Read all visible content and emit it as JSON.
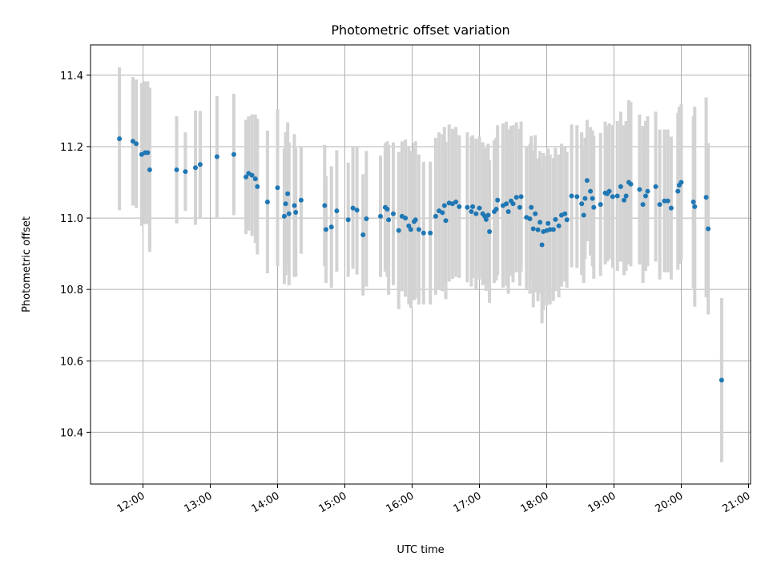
{
  "chart_data": {
    "type": "scatter",
    "title": "Photometric offset variation",
    "xlabel": "UTC time",
    "ylabel": "Photometric offset",
    "grid": true,
    "xlim_hours": [
      11.22,
      21.03
    ],
    "ylim": [
      10.255,
      11.485
    ],
    "x_ticks": [
      {
        "hour": 12,
        "label": "12:00"
      },
      {
        "hour": 13,
        "label": "13:00"
      },
      {
        "hour": 14,
        "label": "14:00"
      },
      {
        "hour": 15,
        "label": "15:00"
      },
      {
        "hour": 16,
        "label": "16:00"
      },
      {
        "hour": 17,
        "label": "17:00"
      },
      {
        "hour": 18,
        "label": "18:00"
      },
      {
        "hour": 19,
        "label": "19:00"
      },
      {
        "hour": 20,
        "label": "20:00"
      },
      {
        "hour": 21,
        "label": "21:00"
      }
    ],
    "y_ticks": [
      {
        "value": 10.4,
        "label": "10.4"
      },
      {
        "value": 10.6,
        "label": "10.6"
      },
      {
        "value": 10.8,
        "label": "10.8"
      },
      {
        "value": 11.0,
        "label": "11.0"
      },
      {
        "value": 11.2,
        "label": "11.2"
      },
      {
        "value": 11.4,
        "label": "11.4"
      }
    ],
    "marker_color": "#1f77b4",
    "errorbar_color": "#d3d3d3",
    "series": [
      {
        "name": "offset",
        "points": [
          [
            11.65,
            11.222,
            0.2
          ],
          [
            11.85,
            11.215,
            0.18
          ],
          [
            11.9,
            11.208,
            0.18
          ],
          [
            11.98,
            11.178,
            0.2
          ],
          [
            12.03,
            11.183,
            0.2
          ],
          [
            12.07,
            11.183,
            0.2
          ],
          [
            12.1,
            11.135,
            0.23
          ],
          [
            12.5,
            11.135,
            0.15
          ],
          [
            12.63,
            11.13,
            0.11
          ],
          [
            12.78,
            11.141,
            0.16
          ],
          [
            12.85,
            11.15,
            0.15
          ],
          [
            13.1,
            11.172,
            0.17
          ],
          [
            13.35,
            11.178,
            0.17
          ],
          [
            13.53,
            11.115,
            0.16
          ],
          [
            13.57,
            11.125,
            0.16
          ],
          [
            13.62,
            11.12,
            0.17
          ],
          [
            13.67,
            11.11,
            0.18
          ],
          [
            13.7,
            11.088,
            0.19
          ],
          [
            13.85,
            11.045,
            0.2
          ],
          [
            14.0,
            11.085,
            0.22
          ],
          [
            14.1,
            11.005,
            0.19
          ],
          [
            14.12,
            11.04,
            0.2
          ],
          [
            14.15,
            11.068,
            0.2
          ],
          [
            14.17,
            11.012,
            0.2
          ],
          [
            14.25,
            11.035,
            0.2
          ],
          [
            14.27,
            11.016,
            0.18
          ],
          [
            14.35,
            11.05,
            0.15
          ],
          [
            14.7,
            11.035,
            0.17
          ],
          [
            14.72,
            10.968,
            0.15
          ],
          [
            14.8,
            10.975,
            0.17
          ],
          [
            14.88,
            11.02,
            0.17
          ],
          [
            15.05,
            10.995,
            0.16
          ],
          [
            15.12,
            11.028,
            0.17
          ],
          [
            15.18,
            11.022,
            0.18
          ],
          [
            15.27,
            10.953,
            0.17
          ],
          [
            15.32,
            10.998,
            0.19
          ],
          [
            15.53,
            11.005,
            0.17
          ],
          [
            15.6,
            11.03,
            0.18
          ],
          [
            15.63,
            11.025,
            0.19
          ],
          [
            15.65,
            10.995,
            0.21
          ],
          [
            15.72,
            11.012,
            0.2
          ],
          [
            15.8,
            10.965,
            0.22
          ],
          [
            15.85,
            11.005,
            0.21
          ],
          [
            15.9,
            11.0,
            0.22
          ],
          [
            15.95,
            10.978,
            0.22
          ],
          [
            15.98,
            10.968,
            0.22
          ],
          [
            16.03,
            10.99,
            0.22
          ],
          [
            16.05,
            10.995,
            0.22
          ],
          [
            16.1,
            10.968,
            0.21
          ],
          [
            16.17,
            10.958,
            0.2
          ],
          [
            16.27,
            10.958,
            0.2
          ],
          [
            16.35,
            11.005,
            0.22
          ],
          [
            16.4,
            11.02,
            0.22
          ],
          [
            16.45,
            11.015,
            0.22
          ],
          [
            16.48,
            11.035,
            0.22
          ],
          [
            16.5,
            10.993,
            0.22
          ],
          [
            16.55,
            11.042,
            0.22
          ],
          [
            16.6,
            11.04,
            0.21
          ],
          [
            16.65,
            11.045,
            0.21
          ],
          [
            16.7,
            11.032,
            0.2
          ],
          [
            16.82,
            11.03,
            0.21
          ],
          [
            16.88,
            11.018,
            0.21
          ],
          [
            16.9,
            11.032,
            0.2
          ],
          [
            16.95,
            11.012,
            0.21
          ],
          [
            17.0,
            11.028,
            0.2
          ],
          [
            17.05,
            11.012,
            0.2
          ],
          [
            17.08,
            11.005,
            0.19
          ],
          [
            17.1,
            10.996,
            0.2
          ],
          [
            17.13,
            11.008,
            0.2
          ],
          [
            17.15,
            10.962,
            0.2
          ],
          [
            17.22,
            11.018,
            0.2
          ],
          [
            17.25,
            11.025,
            0.2
          ],
          [
            17.27,
            11.05,
            0.21
          ],
          [
            17.35,
            11.035,
            0.23
          ],
          [
            17.4,
            11.04,
            0.23
          ],
          [
            17.43,
            11.018,
            0.23
          ],
          [
            17.47,
            11.048,
            0.21
          ],
          [
            17.5,
            11.04,
            0.22
          ],
          [
            17.55,
            11.058,
            0.21
          ],
          [
            17.6,
            11.03,
            0.22
          ],
          [
            17.62,
            11.06,
            0.21
          ],
          [
            17.7,
            11.002,
            0.2
          ],
          [
            17.75,
            10.998,
            0.21
          ],
          [
            17.77,
            11.03,
            0.2
          ],
          [
            17.8,
            10.97,
            0.22
          ],
          [
            17.83,
            11.012,
            0.22
          ],
          [
            17.87,
            10.967,
            0.2
          ],
          [
            17.9,
            10.988,
            0.2
          ],
          [
            17.93,
            10.925,
            0.22
          ],
          [
            17.95,
            10.962,
            0.22
          ],
          [
            18.0,
            10.965,
            0.21
          ],
          [
            18.02,
            10.985,
            0.21
          ],
          [
            18.05,
            10.968,
            0.21
          ],
          [
            18.1,
            10.968,
            0.2
          ],
          [
            18.13,
            10.996,
            0.2
          ],
          [
            18.18,
            10.978,
            0.2
          ],
          [
            18.22,
            11.008,
            0.2
          ],
          [
            18.27,
            11.012,
            0.19
          ],
          [
            18.3,
            10.995,
            0.19
          ],
          [
            18.37,
            11.062,
            0.2
          ],
          [
            18.45,
            11.06,
            0.2
          ],
          [
            18.52,
            11.04,
            0.2
          ],
          [
            18.55,
            11.008,
            0.19
          ],
          [
            18.57,
            11.055,
            0.17
          ],
          [
            18.6,
            11.105,
            0.17
          ],
          [
            18.65,
            11.075,
            0.18
          ],
          [
            18.68,
            11.055,
            0.19
          ],
          [
            18.7,
            11.03,
            0.2
          ],
          [
            18.8,
            11.038,
            0.2
          ],
          [
            18.87,
            11.07,
            0.2
          ],
          [
            18.9,
            11.068,
            0.19
          ],
          [
            18.93,
            11.075,
            0.19
          ],
          [
            18.98,
            11.06,
            0.2
          ],
          [
            19.05,
            11.062,
            0.21
          ],
          [
            19.1,
            11.088,
            0.21
          ],
          [
            19.15,
            11.05,
            0.21
          ],
          [
            19.18,
            11.062,
            0.21
          ],
          [
            19.22,
            11.1,
            0.23
          ],
          [
            19.25,
            11.095,
            0.23
          ],
          [
            19.38,
            11.08,
            0.21
          ],
          [
            19.43,
            11.038,
            0.22
          ],
          [
            19.47,
            11.062,
            0.21
          ],
          [
            19.5,
            11.075,
            0.21
          ],
          [
            19.62,
            11.088,
            0.21
          ],
          [
            19.68,
            11.038,
            0.21
          ],
          [
            19.75,
            11.048,
            0.2
          ],
          [
            19.8,
            11.048,
            0.2
          ],
          [
            19.85,
            11.028,
            0.2
          ],
          [
            19.95,
            11.075,
            0.22
          ],
          [
            19.97,
            11.092,
            0.22
          ],
          [
            20.0,
            11.1,
            0.22
          ],
          [
            20.18,
            11.045,
            0.24
          ],
          [
            20.2,
            11.032,
            0.28
          ],
          [
            20.37,
            11.058,
            0.28
          ],
          [
            20.4,
            10.97,
            0.24
          ],
          [
            20.6,
            10.546,
            0.23
          ]
        ]
      }
    ]
  }
}
